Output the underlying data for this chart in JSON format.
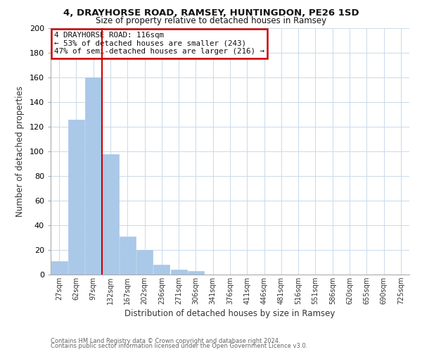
{
  "title_line1": "4, DRAYHORSE ROAD, RAMSEY, HUNTINGDON, PE26 1SD",
  "title_line2": "Size of property relative to detached houses in Ramsey",
  "xlabel": "Distribution of detached houses by size in Ramsey",
  "ylabel": "Number of detached properties",
  "bar_labels": [
    "27sqm",
    "62sqm",
    "97sqm",
    "132sqm",
    "167sqm",
    "202sqm",
    "236sqm",
    "271sqm",
    "306sqm",
    "341sqm",
    "376sqm",
    "411sqm",
    "446sqm",
    "481sqm",
    "516sqm",
    "551sqm",
    "586sqm",
    "620sqm",
    "655sqm",
    "690sqm",
    "725sqm"
  ],
  "bar_values": [
    11,
    126,
    160,
    98,
    31,
    20,
    8,
    4,
    3,
    0,
    0,
    0,
    0,
    0,
    0,
    0,
    0,
    0,
    0,
    0,
    0
  ],
  "bar_color": "#aac8e8",
  "vline_color": "#cc0000",
  "ylim": [
    0,
    200
  ],
  "yticks": [
    0,
    20,
    40,
    60,
    80,
    100,
    120,
    140,
    160,
    180,
    200
  ],
  "annotation_line1": "4 DRAYHORSE ROAD: 116sqm",
  "annotation_line2": "← 53% of detached houses are smaller (243)",
  "annotation_line3": "47% of semi-detached houses are larger (216) →",
  "footer_line1": "Contains HM Land Registry data © Crown copyright and database right 2024.",
  "footer_line2": "Contains public sector information licensed under the Open Government Licence v3.0.",
  "background_color": "#ffffff",
  "grid_color": "#c8daea"
}
